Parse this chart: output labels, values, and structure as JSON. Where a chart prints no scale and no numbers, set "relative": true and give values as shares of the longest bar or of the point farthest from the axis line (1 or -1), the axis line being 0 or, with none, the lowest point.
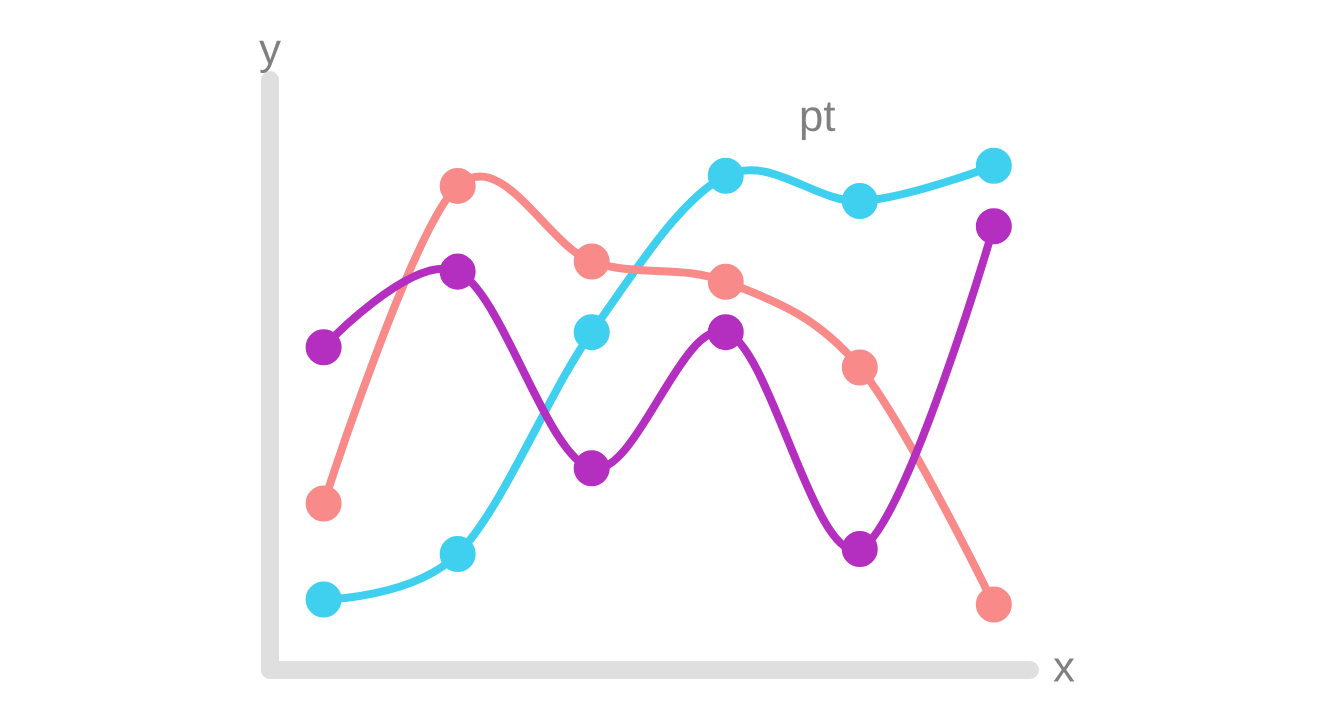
{
  "chart_data": {
    "type": "line",
    "relative": true,
    "xlabel": "x",
    "ylabel": "y",
    "annotations": [
      "pt"
    ],
    "categories": [
      null,
      null,
      null,
      null,
      null,
      null
    ],
    "marker": "circle",
    "line_style": "solid",
    "series": [
      {
        "color": "#3fd0f0",
        "values": [
          0.14,
          0.23,
          0.67,
          0.98,
          0.93,
          1
        ]
      },
      {
        "color": "#f98a8a",
        "values": [
          0.33,
          0.96,
          0.81,
          0.77,
          0.6,
          0.13
        ]
      },
      {
        "color": "#b42fc0",
        "values": [
          0.64,
          0.79,
          0.4,
          0.67,
          0.24,
          0.88
        ]
      }
    ]
  }
}
